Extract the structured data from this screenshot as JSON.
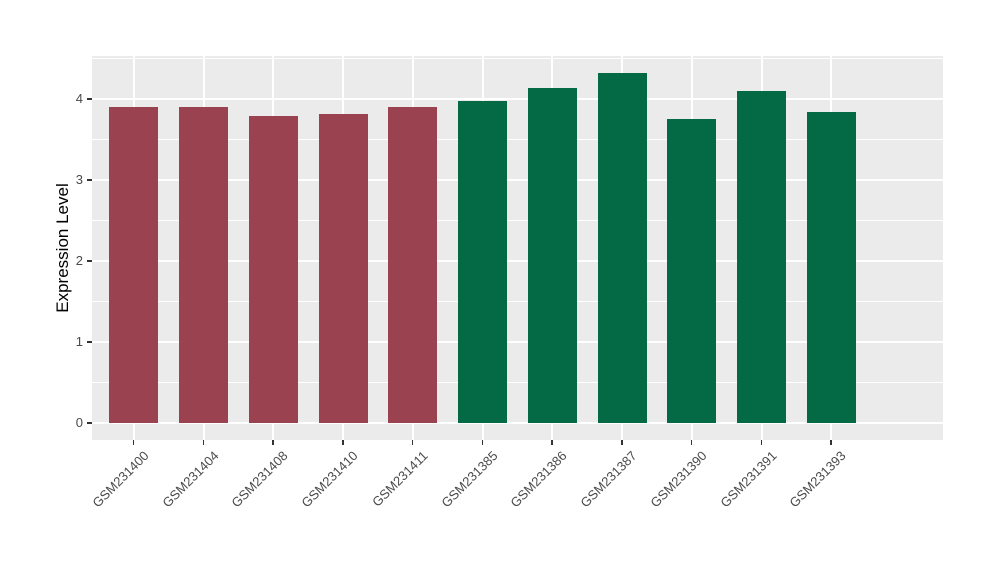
{
  "chart_data": {
    "type": "bar",
    "title": "",
    "xlabel": "",
    "ylabel": "Expression Level",
    "ylim": [
      0,
      4.53
    ],
    "yticks": [
      0,
      1,
      2,
      3,
      4
    ],
    "grid": "ggplot-style: white major gridlines at integer y values and at each category center, white minor gridlines at half-unit y values, on gray panel",
    "legend_position": "none",
    "panel_bg_color": "#EBEBEB",
    "grid_color": "#FFFFFF",
    "axis_text_color": "#4a4a4a",
    "categories": [
      "GSM231400",
      "GSM231404",
      "GSM231408",
      "GSM231410",
      "GSM231411",
      "GSM231385",
      "GSM231386",
      "GSM231387",
      "GSM231390",
      "GSM231391",
      "GSM231393"
    ],
    "values": [
      3.9,
      3.9,
      3.79,
      3.81,
      3.9,
      3.97,
      4.13,
      4.32,
      3.75,
      4.1,
      3.84
    ],
    "bar_groups": [
      "red",
      "red",
      "red",
      "red",
      "red",
      "green",
      "green",
      "green",
      "green",
      "green",
      "green"
    ],
    "group_colors": {
      "red": "#9B4250",
      "green": "#046A46"
    }
  }
}
